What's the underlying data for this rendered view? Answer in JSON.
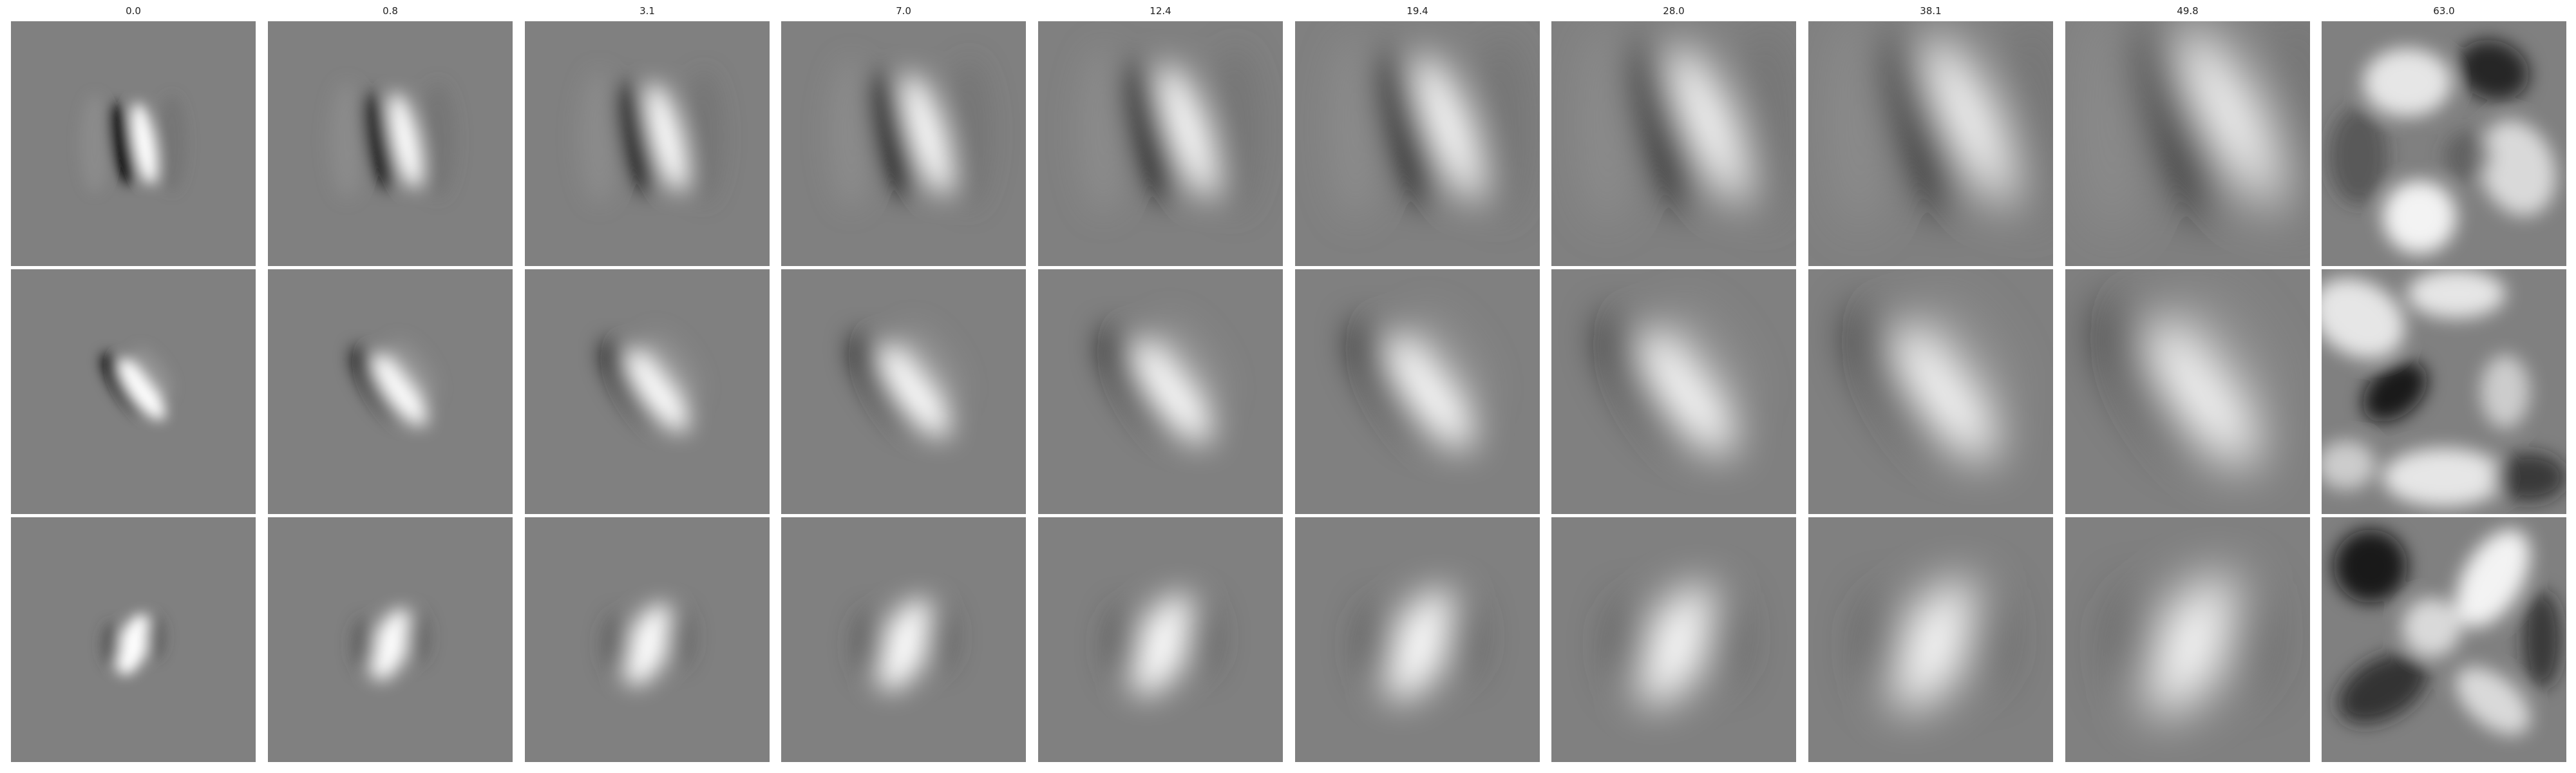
{
  "column_labels": [
    "0.0",
    "0.8",
    "3.1",
    "7.0",
    "12.4",
    "19.4",
    "28.0",
    "38.1",
    "49.8",
    "63.0"
  ],
  "row_count": 3,
  "colors": {
    "background": "#808080",
    "white": "#ffffff",
    "black": "#000000"
  }
}
